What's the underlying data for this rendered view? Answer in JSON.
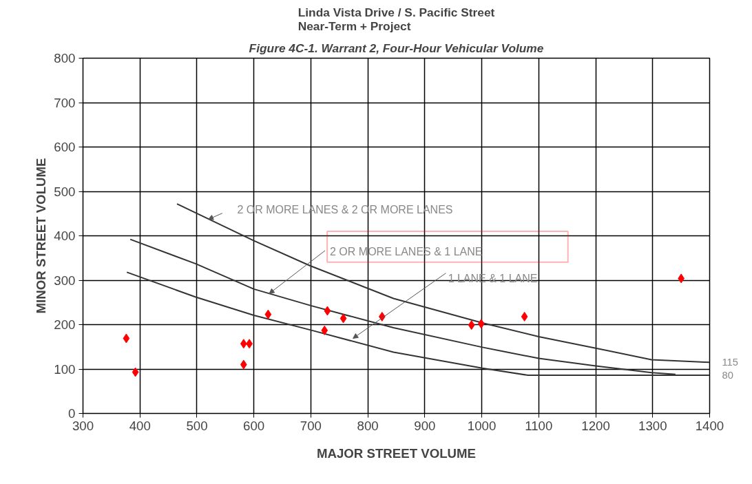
{
  "chart_data": {
    "type": "scatter",
    "title": "Linda Vista Drive / S. Pacific Street\nNear-Term + Project",
    "subtitle": "Figure 4C-1. Warrant 2, Four-Hour Vehicular Volume",
    "xlabel": "MAJOR STREET VOLUME",
    "ylabel": "MINOR STREET VOLUME",
    "xlim": [
      300,
      1400
    ],
    "ylim": [
      0,
      800
    ],
    "xticks": [
      300,
      400,
      500,
      600,
      700,
      800,
      900,
      1000,
      1100,
      1200,
      1300,
      1400
    ],
    "yticks": [
      0,
      100,
      200,
      300,
      400,
      500,
      600,
      700,
      800
    ],
    "grid": true,
    "series": [
      {
        "type": "line",
        "color": "#333333",
        "x": [
          465,
          600,
          698,
          845,
          1001,
          1100,
          1200,
          1298,
          1400
        ],
        "values": [
          472,
          389,
          333,
          259,
          204,
          173,
          147,
          121,
          115
        ]
      },
      {
        "type": "line",
        "color": "#333333",
        "x": [
          383,
          498,
          600,
          702,
          845,
          1001,
          1100,
          1200,
          1298,
          1340
        ],
        "values": [
          392,
          337,
          280,
          242,
          193,
          149,
          124,
          107,
          92,
          88
        ]
      },
      {
        "type": "line",
        "color": "#333333",
        "x": [
          377,
          498,
          600,
          702,
          845,
          1001,
          1081,
          1400
        ],
        "values": [
          318,
          262,
          221,
          187,
          138,
          102,
          86,
          86
        ]
      },
      {
        "marker": "diamond",
        "color": "#ff0000",
        "x": [
          376,
          392,
          582,
          592,
          582,
          625,
          729,
          724,
          757,
          825,
          982,
          999,
          1075,
          1350
        ],
        "values": [
          169,
          93,
          157,
          157,
          110,
          223,
          231,
          187,
          214,
          218,
          199,
          202,
          218,
          304
        ]
      }
    ],
    "annotations": [
      {
        "text": "2 OR MORE LANES & 2 OR MORE LANES",
        "x": 520,
        "y": 437
      },
      {
        "text": "2 OR MORE LANES & 1 LANE",
        "x": 627,
        "y": 270
      },
      {
        "text": "1 LANE & 1 LANE",
        "x": 774,
        "y": 169
      },
      {
        "text": "115",
        "x": 1400,
        "y": 115
      },
      {
        "text": "80",
        "x": 1400,
        "y": 86
      }
    ]
  }
}
